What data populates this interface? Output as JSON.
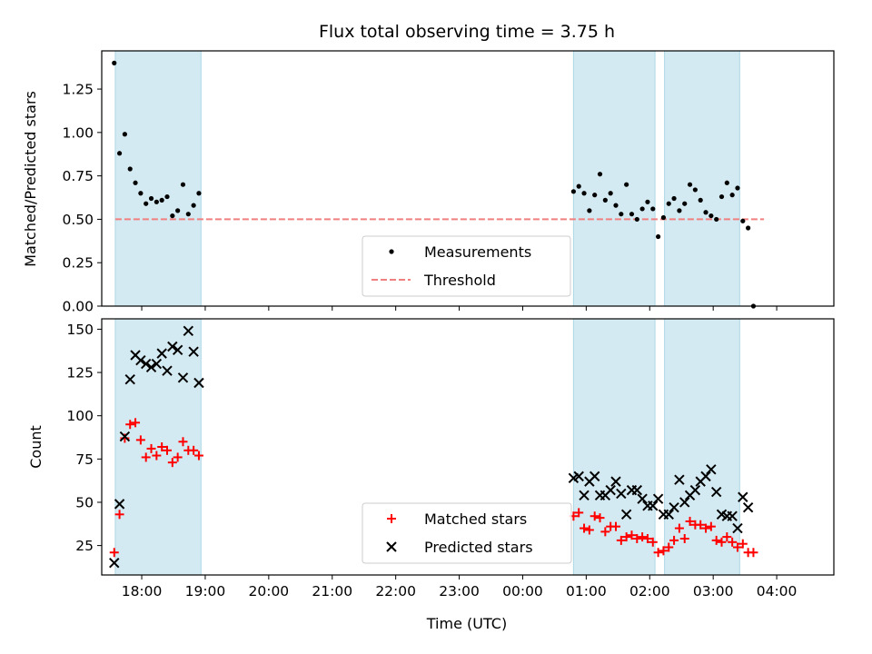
{
  "chart_data": [
    {
      "panel": "top",
      "type": "scatter",
      "title": "Flux total observing time = 3.75 h",
      "ylabel": "Matched/Predicted stars",
      "xlabel": "",
      "x_unit": "hours since 17:00 UTC",
      "xlim": [
        0.37,
        11.9
      ],
      "ylim": [
        0.0,
        1.47
      ],
      "yticks": [
        0.0,
        0.25,
        0.5,
        0.75,
        1.0,
        1.25
      ],
      "ytick_labels": [
        "0.00",
        "0.25",
        "0.50",
        "0.75",
        "1.00",
        "1.25"
      ],
      "grid": false,
      "legend_position": "lower-center",
      "shaded_intervals": [
        {
          "start": "17:35",
          "end": "18:56"
        },
        {
          "start": "00:48",
          "end": "02:05"
        },
        {
          "start": "02:14",
          "end": "03:25"
        }
      ],
      "threshold": {
        "name": "Threshold",
        "y": 0.5,
        "x_start": "17:35",
        "x_end": "03:48",
        "color": "#f08080"
      },
      "series": [
        {
          "name": "Measurements",
          "color": "#000000",
          "marker": "dot",
          "points": [
            [
              "17:34",
              1.4
            ],
            [
              "17:39",
              0.88
            ],
            [
              "17:44",
              0.99
            ],
            [
              "17:49",
              0.79
            ],
            [
              "17:54",
              0.71
            ],
            [
              "17:59",
              0.65
            ],
            [
              "18:04",
              0.59
            ],
            [
              "18:09",
              0.62
            ],
            [
              "18:14",
              0.6
            ],
            [
              "18:19",
              0.61
            ],
            [
              "18:24",
              0.63
            ],
            [
              "18:29",
              0.52
            ],
            [
              "18:34",
              0.55
            ],
            [
              "18:39",
              0.7
            ],
            [
              "18:44",
              0.53
            ],
            [
              "18:49",
              0.58
            ],
            [
              "18:54",
              0.65
            ],
            [
              "00:48",
              0.66
            ],
            [
              "00:53",
              0.69
            ],
            [
              "00:58",
              0.65
            ],
            [
              "01:03",
              0.55
            ],
            [
              "01:08",
              0.64
            ],
            [
              "01:13",
              0.76
            ],
            [
              "01:18",
              0.61
            ],
            [
              "01:23",
              0.65
            ],
            [
              "01:28",
              0.58
            ],
            [
              "01:33",
              0.53
            ],
            [
              "01:38",
              0.7
            ],
            [
              "01:43",
              0.53
            ],
            [
              "01:48",
              0.5
            ],
            [
              "01:53",
              0.56
            ],
            [
              "01:58",
              0.6
            ],
            [
              "02:03",
              0.56
            ],
            [
              "02:08",
              0.4
            ],
            [
              "02:13",
              0.51
            ],
            [
              "02:18",
              0.59
            ],
            [
              "02:23",
              0.62
            ],
            [
              "02:28",
              0.55
            ],
            [
              "02:33",
              0.59
            ],
            [
              "02:38",
              0.7
            ],
            [
              "02:43",
              0.67
            ],
            [
              "02:48",
              0.61
            ],
            [
              "02:53",
              0.54
            ],
            [
              "02:58",
              0.52
            ],
            [
              "03:03",
              0.5
            ],
            [
              "03:08",
              0.63
            ],
            [
              "03:13",
              0.71
            ],
            [
              "03:18",
              0.64
            ],
            [
              "03:23",
              0.68
            ],
            [
              "03:28",
              0.49
            ],
            [
              "03:33",
              0.45
            ],
            [
              "03:38",
              0.0
            ]
          ]
        }
      ],
      "legend": [
        "Measurements",
        "Threshold"
      ]
    },
    {
      "panel": "bottom",
      "type": "scatter",
      "title": "",
      "ylabel": "Count",
      "xlabel": "Time (UTC)",
      "xlim": [
        0.37,
        11.9
      ],
      "ylim": [
        8,
        156
      ],
      "yticks": [
        25,
        50,
        75,
        100,
        125,
        150
      ],
      "ytick_labels": [
        "25",
        "50",
        "75",
        "100",
        "125",
        "150"
      ],
      "xticks": [
        "18:00",
        "19:00",
        "20:00",
        "21:00",
        "22:00",
        "23:00",
        "00:00",
        "01:00",
        "02:00",
        "03:00",
        "04:00"
      ],
      "grid": false,
      "legend_position": "lower-center",
      "shaded_intervals": [
        {
          "start": "17:35",
          "end": "18:56"
        },
        {
          "start": "00:48",
          "end": "02:05"
        },
        {
          "start": "02:14",
          "end": "03:25"
        }
      ],
      "series": [
        {
          "name": "Matched stars",
          "color": "#ff0000",
          "marker": "plus",
          "points": [
            [
              "17:34",
              21
            ],
            [
              "17:39",
              43
            ],
            [
              "17:44",
              87
            ],
            [
              "17:49",
              95
            ],
            [
              "17:54",
              96
            ],
            [
              "17:59",
              86
            ],
            [
              "18:04",
              76
            ],
            [
              "18:09",
              81
            ],
            [
              "18:14",
              77
            ],
            [
              "18:19",
              82
            ],
            [
              "18:24",
              80
            ],
            [
              "18:29",
              73
            ],
            [
              "18:34",
              76
            ],
            [
              "18:39",
              85
            ],
            [
              "18:44",
              80
            ],
            [
              "18:49",
              80
            ],
            [
              "18:54",
              77
            ],
            [
              "00:48",
              42
            ],
            [
              "00:53",
              44
            ],
            [
              "00:58",
              35
            ],
            [
              "01:03",
              34
            ],
            [
              "01:08",
              42
            ],
            [
              "01:13",
              41
            ],
            [
              "01:18",
              33
            ],
            [
              "01:23",
              36
            ],
            [
              "01:28",
              36
            ],
            [
              "01:33",
              28
            ],
            [
              "01:38",
              30
            ],
            [
              "01:43",
              31
            ],
            [
              "01:48",
              29
            ],
            [
              "01:53",
              30
            ],
            [
              "01:58",
              29
            ],
            [
              "02:03",
              27
            ],
            [
              "02:08",
              21
            ],
            [
              "02:13",
              22
            ],
            [
              "02:18",
              24
            ],
            [
              "02:23",
              28
            ],
            [
              "02:28",
              35
            ],
            [
              "02:33",
              29
            ],
            [
              "02:38",
              39
            ],
            [
              "02:43",
              37
            ],
            [
              "02:48",
              37
            ],
            [
              "02:53",
              35
            ],
            [
              "02:58",
              36
            ],
            [
              "03:03",
              28
            ],
            [
              "03:08",
              27
            ],
            [
              "03:13",
              30
            ],
            [
              "03:18",
              27
            ],
            [
              "03:23",
              24
            ],
            [
              "03:28",
              26
            ],
            [
              "03:33",
              21
            ],
            [
              "03:38",
              21
            ]
          ]
        },
        {
          "name": "Predicted stars",
          "color": "#000000",
          "marker": "x",
          "points": [
            [
              "17:34",
              15
            ],
            [
              "17:39",
              49
            ],
            [
              "17:44",
              88
            ],
            [
              "17:49",
              121
            ],
            [
              "17:54",
              135
            ],
            [
              "17:59",
              132
            ],
            [
              "18:04",
              130
            ],
            [
              "18:09",
              128
            ],
            [
              "18:14",
              130
            ],
            [
              "18:19",
              136
            ],
            [
              "18:24",
              126
            ],
            [
              "18:29",
              140
            ],
            [
              "18:34",
              138
            ],
            [
              "18:39",
              122
            ],
            [
              "18:44",
              149
            ],
            [
              "18:49",
              137
            ],
            [
              "18:54",
              119
            ],
            [
              "00:48",
              64
            ],
            [
              "00:53",
              65
            ],
            [
              "00:58",
              54
            ],
            [
              "01:03",
              62
            ],
            [
              "01:08",
              65
            ],
            [
              "01:13",
              54
            ],
            [
              "01:18",
              54
            ],
            [
              "01:23",
              57
            ],
            [
              "01:28",
              62
            ],
            [
              "01:33",
              55
            ],
            [
              "01:38",
              43
            ],
            [
              "01:43",
              57
            ],
            [
              "01:48",
              57
            ],
            [
              "01:53",
              52
            ],
            [
              "01:58",
              48
            ],
            [
              "02:03",
              48
            ],
            [
              "02:08",
              52
            ],
            [
              "02:13",
              43
            ],
            [
              "02:18",
              43
            ],
            [
              "02:23",
              47
            ],
            [
              "02:28",
              63
            ],
            [
              "02:33",
              50
            ],
            [
              "02:38",
              54
            ],
            [
              "02:43",
              57
            ],
            [
              "02:48",
              62
            ],
            [
              "02:53",
              65
            ],
            [
              "02:58",
              69
            ],
            [
              "03:03",
              56
            ],
            [
              "03:08",
              43
            ],
            [
              "03:13",
              42
            ],
            [
              "03:18",
              42
            ],
            [
              "03:23",
              35
            ],
            [
              "03:28",
              53
            ],
            [
              "03:33",
              47
            ]
          ]
        }
      ],
      "legend": [
        "Matched stars",
        "Predicted stars"
      ]
    }
  ],
  "colors": {
    "shade": "#add8e6",
    "matched": "#ff0000",
    "predicted": "#000000",
    "threshold": "#f08080"
  }
}
